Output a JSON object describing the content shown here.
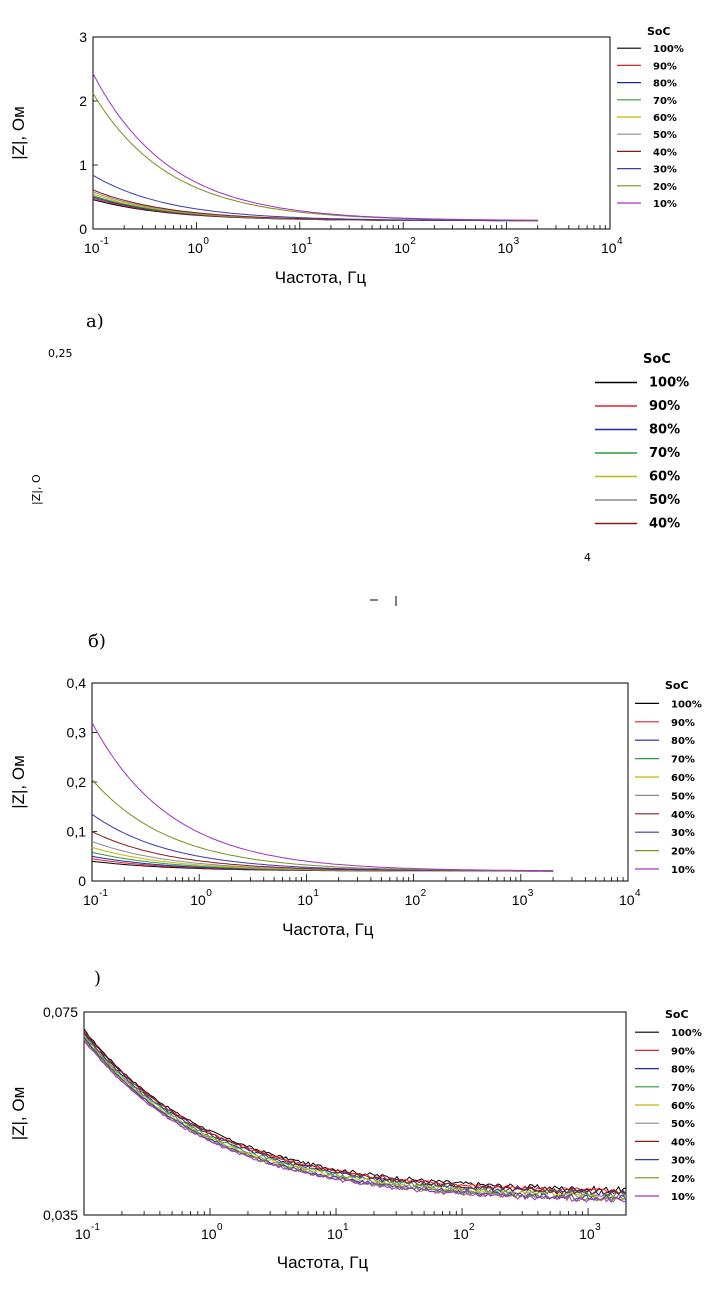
{
  "legend_title": "SoC",
  "series_colors": [
    "#000000",
    "#e8202a",
    "#1f2aa8",
    "#2e9b3b",
    "#c8b400",
    "#8c8c8c",
    "#8b1a1a",
    "#3a3ab0",
    "#7a8f1c",
    "#a030c8"
  ],
  "panel_labels": {
    "a": "а)",
    "b": "б)",
    "c": ")"
  },
  "fragments": {
    "ytop": "0,25",
    "ylabel": "|Z|, O",
    "tick4": "4"
  },
  "chart_data": [
    {
      "type": "line",
      "id": "a",
      "xscale": "log",
      "xlim": [
        0.1,
        10000
      ],
      "ylim": [
        0,
        3
      ],
      "xlabel": "Частота, Гц",
      "ylabel": "|Z|, Ом",
      "xticks": [
        "10",
        "10",
        "10",
        "10",
        "10",
        "10"
      ],
      "xtick_exps": [
        "-1",
        "0",
        "1",
        "2",
        "3",
        "4"
      ],
      "yticks": [
        "0",
        "1",
        "2",
        "3"
      ],
      "legend_position": "right",
      "series": [
        {
          "name": "100%",
          "start": 0.46,
          "end": 0.13
        },
        {
          "name": "90%",
          "start": 0.48,
          "end": 0.13
        },
        {
          "name": "80%",
          "start": 0.5,
          "end": 0.13
        },
        {
          "name": "70%",
          "start": 0.52,
          "end": 0.13
        },
        {
          "name": "60%",
          "start": 0.55,
          "end": 0.13
        },
        {
          "name": "50%",
          "start": 0.58,
          "end": 0.13
        },
        {
          "name": "40%",
          "start": 0.61,
          "end": 0.13
        },
        {
          "name": "30%",
          "start": 0.84,
          "end": 0.13
        },
        {
          "name": "20%",
          "start": 2.12,
          "end": 0.13
        },
        {
          "name": "10%",
          "start": 2.43,
          "end": 0.13
        }
      ]
    },
    {
      "type": "line",
      "id": "b",
      "legend_only": true,
      "legend_position": "right",
      "series": [
        {
          "name": "100%"
        },
        {
          "name": "90%"
        },
        {
          "name": "80%"
        },
        {
          "name": "70%"
        },
        {
          "name": "60%"
        },
        {
          "name": "50%"
        },
        {
          "name": "40%"
        }
      ]
    },
    {
      "type": "line",
      "id": "c",
      "xscale": "log",
      "xlim": [
        0.1,
        10000
      ],
      "ylim": [
        0,
        0.4
      ],
      "xlabel": "Частота, Гц",
      "ylabel": "|Z|, Ом",
      "xticks": [
        "10",
        "10",
        "10",
        "10",
        "10",
        "10"
      ],
      "xtick_exps": [
        "-1",
        "0",
        "1",
        "2",
        "3",
        "4"
      ],
      "yticks": [
        "0",
        "0,1",
        "0,2",
        "0,3",
        "0,4"
      ],
      "legend_position": "right",
      "series": [
        {
          "name": "100%",
          "start": 0.04,
          "end": 0.02
        },
        {
          "name": "90%",
          "start": 0.045,
          "end": 0.02
        },
        {
          "name": "80%",
          "start": 0.05,
          "end": 0.02
        },
        {
          "name": "70%",
          "start": 0.058,
          "end": 0.02
        },
        {
          "name": "60%",
          "start": 0.068,
          "end": 0.02
        },
        {
          "name": "50%",
          "start": 0.08,
          "end": 0.02
        },
        {
          "name": "40%",
          "start": 0.1,
          "end": 0.02
        },
        {
          "name": "30%",
          "start": 0.135,
          "end": 0.02
        },
        {
          "name": "20%",
          "start": 0.205,
          "end": 0.02
        },
        {
          "name": "10%",
          "start": 0.32,
          "end": 0.02
        }
      ]
    },
    {
      "type": "line",
      "id": "d",
      "xscale": "log",
      "xlim": [
        0.1,
        2000
      ],
      "ylim": [
        0.035,
        0.075
      ],
      "xlabel": "Частота, Гц",
      "ylabel": "|Z|, Ом",
      "xticks": [
        "10",
        "10",
        "10",
        "10",
        "10"
      ],
      "xtick_exps": [
        "-1",
        "0",
        "1",
        "2",
        "3"
      ],
      "yticks": [
        "0,035",
        "0,075"
      ],
      "legend_position": "right",
      "series": [
        {
          "name": "100%",
          "start": 0.0715,
          "end": 0.0395
        },
        {
          "name": "90%",
          "start": 0.0712,
          "end": 0.0392
        },
        {
          "name": "80%",
          "start": 0.0708,
          "end": 0.0388
        },
        {
          "name": "70%",
          "start": 0.0705,
          "end": 0.0385
        },
        {
          "name": "60%",
          "start": 0.0702,
          "end": 0.0382
        },
        {
          "name": "50%",
          "start": 0.0698,
          "end": 0.038
        },
        {
          "name": "40%",
          "start": 0.0712,
          "end": 0.039
        },
        {
          "name": "30%",
          "start": 0.07,
          "end": 0.0378
        },
        {
          "name": "20%",
          "start": 0.0696,
          "end": 0.0376
        },
        {
          "name": "10%",
          "start": 0.0694,
          "end": 0.0375
        }
      ]
    }
  ]
}
